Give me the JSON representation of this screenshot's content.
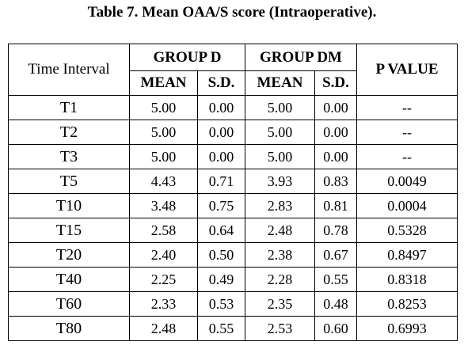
{
  "caption": "Table 7. Mean OAA/S score (Intraoperative).",
  "table": {
    "header": {
      "time_interval": "Time Interval",
      "group_d": "GROUP D",
      "group_dm": "GROUP DM",
      "p_value": "P VALUE",
      "mean": "MEAN",
      "sd": "S.D."
    },
    "rows": [
      {
        "interval": "T1",
        "d_mean": "5.00",
        "d_sd": "0.00",
        "dm_mean": "5.00",
        "dm_sd": "0.00",
        "p": "--"
      },
      {
        "interval": "T2",
        "d_mean": "5.00",
        "d_sd": "0.00",
        "dm_mean": "5.00",
        "dm_sd": "0.00",
        "p": "--"
      },
      {
        "interval": "T3",
        "d_mean": "5.00",
        "d_sd": "0.00",
        "dm_mean": "5.00",
        "dm_sd": "0.00",
        "p": "--"
      },
      {
        "interval": "T5",
        "d_mean": "4.43",
        "d_sd": "0.71",
        "dm_mean": "3.93",
        "dm_sd": "0.83",
        "p": "0.0049"
      },
      {
        "interval": "T10",
        "d_mean": "3.48",
        "d_sd": "0.75",
        "dm_mean": "2.83",
        "dm_sd": "0.81",
        "p": "0.0004"
      },
      {
        "interval": "T15",
        "d_mean": "2.58",
        "d_sd": "0.64",
        "dm_mean": "2.48",
        "dm_sd": "0.78",
        "p": "0.5328"
      },
      {
        "interval": "T20",
        "d_mean": "2.40",
        "d_sd": "0.50",
        "dm_mean": "2.38",
        "dm_sd": "0.67",
        "p": "0.8497"
      },
      {
        "interval": "T40",
        "d_mean": "2.25",
        "d_sd": "0.49",
        "dm_mean": "2.28",
        "dm_sd": "0.55",
        "p": "0.8318"
      },
      {
        "interval": "T60",
        "d_mean": "2.33",
        "d_sd": "0.53",
        "dm_mean": "2.35",
        "dm_sd": "0.48",
        "p": "0.8253"
      },
      {
        "interval": "T80",
        "d_mean": "2.48",
        "d_sd": "0.55",
        "dm_mean": "2.53",
        "dm_sd": "0.60",
        "p": "0.6993"
      }
    ]
  }
}
